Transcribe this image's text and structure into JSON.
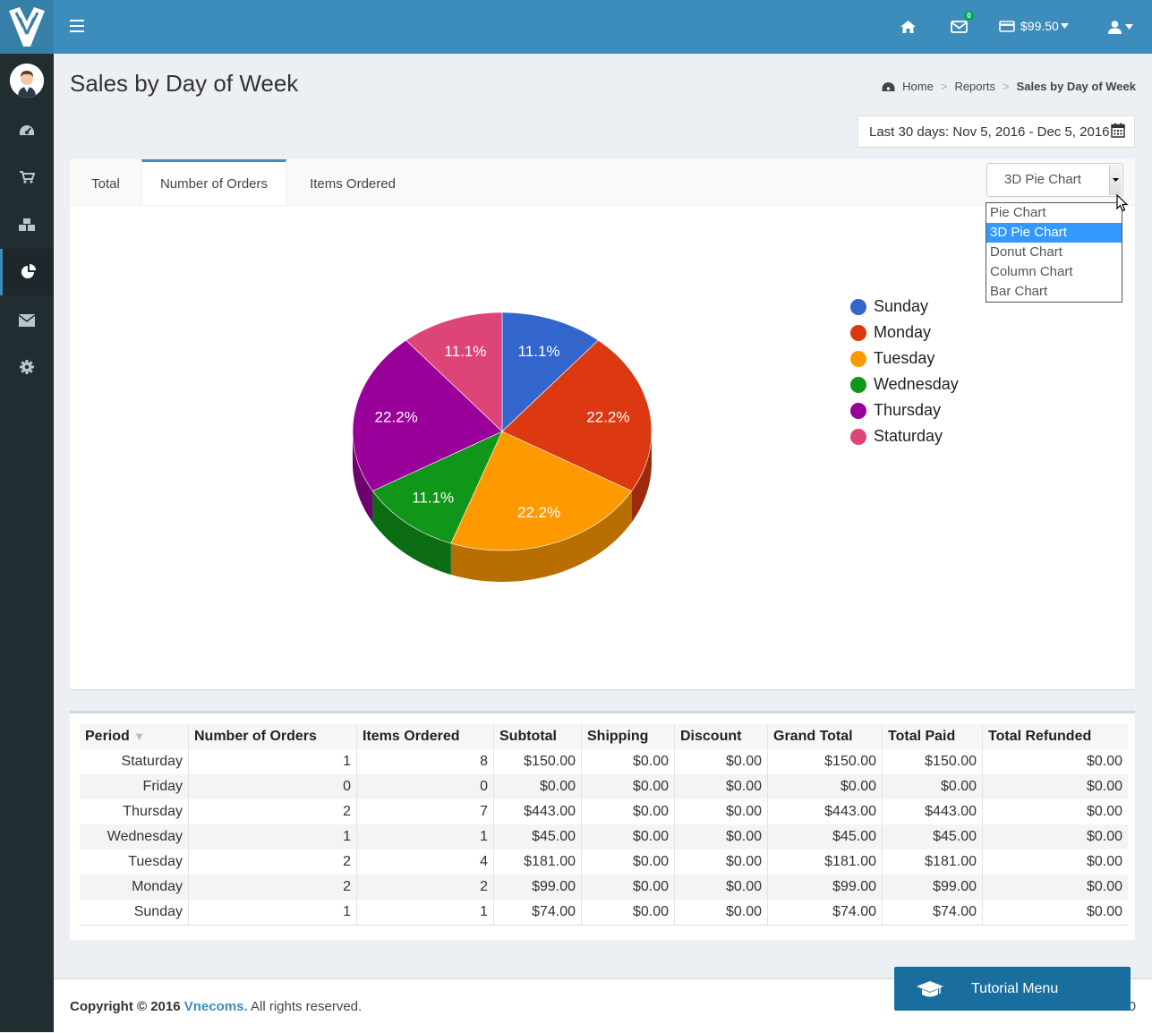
{
  "topbar": {
    "mail_badge": "0",
    "balance": "$99.50"
  },
  "page": {
    "title": "Sales by Day of Week",
    "breadcrumb": [
      "Home",
      "Reports",
      "Sales by Day of Week"
    ],
    "date_range": "Last 30 days: Nov 5, 2016 - Dec 5, 2016"
  },
  "tabs": [
    {
      "label": "Total",
      "active": false
    },
    {
      "label": "Number of Orders",
      "active": true
    },
    {
      "label": "Items Ordered",
      "active": false
    }
  ],
  "chart_select": {
    "value": "3D Pie Chart",
    "options": [
      "Pie Chart",
      "3D Pie Chart",
      "Donut Chart",
      "Column Chart",
      "Bar Chart"
    ]
  },
  "chart_data": {
    "type": "pie",
    "labels": [
      "Sunday",
      "Monday",
      "Tuesday",
      "Wednesday",
      "Thursday",
      "Staturday"
    ],
    "values": [
      1,
      2,
      2,
      1,
      2,
      1
    ],
    "percent_labels": [
      "11.1%",
      "22.2%",
      "22.2%",
      "11.1%",
      "22.2%",
      "11.1%"
    ],
    "colors": [
      "#3366cc",
      "#dc3912",
      "#ff9900",
      "#109618",
      "#990099",
      "#dd4477"
    ],
    "legend_position": "right",
    "style": "3d"
  },
  "table": {
    "headers": [
      "Period",
      "Number of Orders",
      "Items Ordered",
      "Subtotal",
      "Shipping",
      "Discount",
      "Grand Total",
      "Total Paid",
      "Total Refunded"
    ],
    "rows": [
      [
        "Staturday",
        "1",
        "8",
        "$150.00",
        "$0.00",
        "$0.00",
        "$150.00",
        "$150.00",
        "$0.00"
      ],
      [
        "Friday",
        "0",
        "0",
        "$0.00",
        "$0.00",
        "$0.00",
        "$0.00",
        "$0.00",
        "$0.00"
      ],
      [
        "Thursday",
        "2",
        "7",
        "$443.00",
        "$0.00",
        "$0.00",
        "$443.00",
        "$443.00",
        "$0.00"
      ],
      [
        "Wednesday",
        "1",
        "1",
        "$45.00",
        "$0.00",
        "$0.00",
        "$45.00",
        "$45.00",
        "$0.00"
      ],
      [
        "Tuesday",
        "2",
        "4",
        "$181.00",
        "$0.00",
        "$0.00",
        "$181.00",
        "$181.00",
        "$0.00"
      ],
      [
        "Monday",
        "2",
        "2",
        "$99.00",
        "$0.00",
        "$0.00",
        "$99.00",
        "$99.00",
        "$0.00"
      ],
      [
        "Sunday",
        "1",
        "1",
        "$74.00",
        "$0.00",
        "$0.00",
        "$74.00",
        "$74.00",
        "$0.00"
      ]
    ]
  },
  "footer": {
    "copyright_prefix": "Copyright © 2016",
    "brand": "Vnecoms.",
    "suffix": "All rights reserved.",
    "version": "0"
  },
  "tutorial": {
    "label": "Tutorial Menu"
  }
}
